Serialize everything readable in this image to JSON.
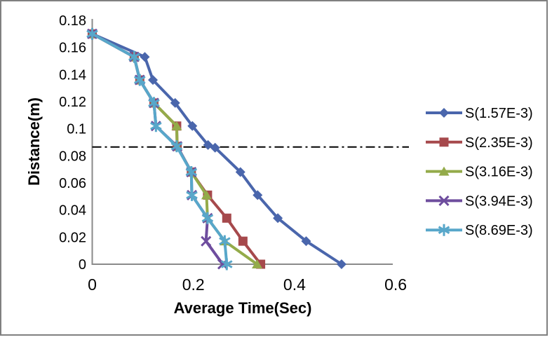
{
  "figure": {
    "background": "#ffffff",
    "frame_border_color": "#808080",
    "axis_color": "#8a8a8a"
  },
  "chart_data": {
    "type": "line",
    "title": "",
    "xlabel": "Average Time(Sec)",
    "ylabel": "Distance(m)",
    "xlim": [
      0,
      0.6
    ],
    "ylim": [
      0,
      0.18
    ],
    "grid": false,
    "legend_position": "right",
    "xticks": [
      {
        "v": 0,
        "label": "0"
      },
      {
        "v": 0.2,
        "label": "0.2"
      },
      {
        "v": 0.4,
        "label": "0.4"
      },
      {
        "v": 0.6,
        "label": "0.6"
      }
    ],
    "yticks": [
      {
        "v": 0,
        "label": "0"
      },
      {
        "v": 0.02,
        "label": "0.02"
      },
      {
        "v": 0.04,
        "label": "0.04"
      },
      {
        "v": 0.06,
        "label": "0.06"
      },
      {
        "v": 0.08,
        "label": "0.08"
      },
      {
        "v": 0.1,
        "label": "0.1"
      },
      {
        "v": 0.12,
        "label": "0.12"
      },
      {
        "v": 0.14,
        "label": "0.14"
      },
      {
        "v": 0.16,
        "label": "0.16"
      },
      {
        "v": 0.18,
        "label": "0.18"
      }
    ],
    "reference_line": {
      "y": 0.0865,
      "style": "dash-dot",
      "color": "#000000"
    },
    "series": [
      {
        "name": "S(1.57E-3)",
        "color": "#4a66ac",
        "marker": "diamond",
        "points": [
          [
            0,
            0.17
          ],
          [
            0.104,
            0.153
          ],
          [
            0.12,
            0.136
          ],
          [
            0.164,
            0.119
          ],
          [
            0.198,
            0.102
          ],
          [
            0.229,
            0.088
          ],
          [
            0.243,
            0.086
          ],
          [
            0.293,
            0.068
          ],
          [
            0.327,
            0.051
          ],
          [
            0.367,
            0.034
          ],
          [
            0.423,
            0.017
          ],
          [
            0.493,
            0
          ]
        ]
      },
      {
        "name": "S(2.35E-3)",
        "color": "#a6494c",
        "marker": "square",
        "points": [
          [
            0,
            0.17
          ],
          [
            0.083,
            0.153
          ],
          [
            0.094,
            0.136
          ],
          [
            0.122,
            0.119
          ],
          [
            0.167,
            0.102
          ],
          [
            0.168,
            0.087
          ],
          [
            0.196,
            0.068
          ],
          [
            0.228,
            0.051
          ],
          [
            0.266,
            0.034
          ],
          [
            0.298,
            0.017
          ],
          [
            0.333,
            0
          ]
        ]
      },
      {
        "name": "S(3.16E-3)",
        "color": "#94ab4a",
        "marker": "triangle",
        "points": [
          [
            0,
            0.17
          ],
          [
            0.083,
            0.153
          ],
          [
            0.094,
            0.136
          ],
          [
            0.122,
            0.119
          ],
          [
            0.167,
            0.102
          ],
          [
            0.168,
            0.087
          ],
          [
            0.196,
            0.068
          ],
          [
            0.226,
            0.051
          ],
          [
            0.228,
            0.034
          ],
          [
            0.262,
            0.017
          ],
          [
            0.326,
            0
          ]
        ]
      },
      {
        "name": "S(3.94E-3)",
        "color": "#6e4d9e",
        "marker": "x",
        "points": [
          [
            0,
            0.17
          ],
          [
            0.083,
            0.153
          ],
          [
            0.094,
            0.136
          ],
          [
            0.122,
            0.119
          ],
          [
            0.126,
            0.102
          ],
          [
            0.168,
            0.087
          ],
          [
            0.196,
            0.068
          ],
          [
            0.197,
            0.051
          ],
          [
            0.228,
            0.034
          ],
          [
            0.225,
            0.017
          ],
          [
            0.258,
            0
          ]
        ]
      },
      {
        "name": "S(8.69E-3)",
        "color": "#58a7ca",
        "marker": "asterisk",
        "points": [
          [
            0,
            0.17
          ],
          [
            0.083,
            0.153
          ],
          [
            0.094,
            0.136
          ],
          [
            0.122,
            0.119
          ],
          [
            0.126,
            0.102
          ],
          [
            0.167,
            0.087
          ],
          [
            0.196,
            0.068
          ],
          [
            0.197,
            0.051
          ],
          [
            0.228,
            0.034
          ],
          [
            0.262,
            0.017
          ],
          [
            0.266,
            0
          ]
        ]
      }
    ]
  }
}
